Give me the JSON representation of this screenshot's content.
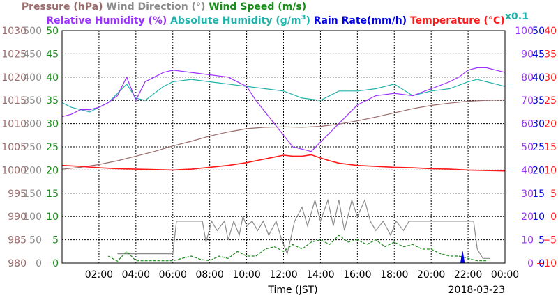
{
  "legend": {
    "row1": [
      {
        "text": "Pressure (hPa)",
        "color": "#9a6b6b"
      },
      {
        "text": "Wind Direction (°)",
        "color": "#8c8c8c"
      },
      {
        "text": "Wind Speed (m/s)",
        "color": "#1a8c1a"
      }
    ],
    "row2": [
      {
        "text": "Relative Humidity (%)",
        "color": "#9b30ff"
      },
      {
        "text": "Absolute Humidity (g/m",
        "sup": "3",
        "close": ")",
        "color": "#20b2aa"
      },
      {
        "text": "Rain Rate(mm/h)",
        "color": "#0000e0"
      },
      {
        "text": "Temperature (°C)",
        "color": "#ff1a1a"
      }
    ],
    "scale_note": {
      "text": "x0.1",
      "color": "#20b2aa"
    }
  },
  "colors": {
    "pressure": "#9a6b6b",
    "wind_direction": "#8c8c8c",
    "wind_speed": "#1a8c1a",
    "relative_humidity": "#9b30ff",
    "absolute_humidity": "#20b2aa",
    "rain_rate": "#0000e0",
    "temperature": "#ff1a1a",
    "grid": "#000000"
  },
  "chart_data": {
    "type": "line",
    "xlabel": "Time (JST)",
    "date": "2018-03-23",
    "x_ticks": [
      "02:00",
      "04:00",
      "06:00",
      "08:00",
      "10:00",
      "12:00",
      "14:00",
      "16:00",
      "18:00",
      "20:00",
      "22:00",
      "00:00"
    ],
    "xlim": [
      0,
      24
    ],
    "grid": true,
    "axes": {
      "pressure": {
        "ticks": [
          "1030",
          "1025",
          "1020",
          "1015",
          "1010",
          "1005",
          "1000",
          "995",
          "990",
          "985",
          "980"
        ],
        "ylim": [
          980,
          1030
        ]
      },
      "wind_direction": {
        "ticks": [
          "500",
          "450",
          "400",
          "350",
          "300",
          "250",
          "200",
          "150",
          "100",
          "50",
          "0"
        ],
        "ylim": [
          0,
          500
        ]
      },
      "wind_speed": {
        "ticks": [
          "50",
          "45",
          "40",
          "35",
          "30",
          "25",
          "20",
          "15",
          "10",
          "5",
          "0"
        ],
        "ylim": [
          0,
          50
        ]
      },
      "relative_humidity": {
        "ticks": [
          "100",
          "90",
          "80",
          "70",
          "60",
          "50",
          "40",
          "30",
          "20",
          "10",
          "0"
        ],
        "ylim": [
          0,
          100
        ]
      },
      "rain_rate": {
        "ticks": [
          "50",
          "45",
          "40",
          "35",
          "30",
          "25",
          "20",
          "15",
          "10",
          "5",
          "0"
        ],
        "ylim": [
          0,
          50
        ]
      },
      "temperature": {
        "ticks": [
          "40",
          "35",
          "30",
          "25",
          "20",
          "15",
          "10",
          "5",
          "0",
          "−5",
          "−10"
        ],
        "ylim": [
          -10,
          40
        ]
      }
    },
    "series": [
      {
        "name": "Pressure (hPa)",
        "key": "pressure",
        "axis": "pressure",
        "x": [
          0,
          1,
          2,
          3,
          4,
          5,
          6,
          7,
          8,
          9,
          10,
          11,
          12,
          13,
          14,
          15,
          16,
          17,
          18,
          19,
          20,
          21,
          22,
          23,
          24
        ],
        "y": [
          1000.2,
          1000.6,
          1001.2,
          1002.0,
          1003.0,
          1004.0,
          1005.2,
          1006.2,
          1007.3,
          1008.2,
          1008.9,
          1009.2,
          1009.3,
          1009.2,
          1009.4,
          1009.9,
          1010.6,
          1011.4,
          1012.3,
          1013.2,
          1013.9,
          1014.4,
          1014.8,
          1015.0,
          1015.1
        ]
      },
      {
        "name": "Wind Direction (°)",
        "key": "wind_direction",
        "axis": "wind_direction",
        "x": [
          3.0,
          3.2,
          6.0,
          6.2,
          6.6,
          7.6,
          7.8,
          8.1,
          8.4,
          8.8,
          9.0,
          9.3,
          9.6,
          9.8,
          10.0,
          10.3,
          10.6,
          10.9,
          11.2,
          11.6,
          11.9,
          12.2,
          12.6,
          13.0,
          13.3,
          13.7,
          14.0,
          14.4,
          14.7,
          15.0,
          15.3,
          15.7,
          16.0,
          16.4,
          16.7,
          17.0,
          17.4,
          17.8,
          18.1,
          18.5,
          18.8,
          19.2,
          19.6,
          20.0,
          20.5,
          21.0,
          21.5,
          22.0,
          22.3,
          22.5,
          22.8,
          23.2
        ],
        "y": [
          20,
          20,
          20,
          90,
          90,
          90,
          45,
          90,
          70,
          90,
          50,
          90,
          60,
          100,
          80,
          90,
          70,
          90,
          60,
          90,
          50,
          20,
          90,
          120,
          80,
          135,
          90,
          135,
          80,
          135,
          70,
          135,
          100,
          135,
          90,
          70,
          90,
          60,
          90,
          70,
          90,
          90,
          90,
          90,
          90,
          90,
          90,
          90,
          90,
          30,
          10,
          10
        ]
      },
      {
        "name": "Wind Speed (m/s)",
        "key": "wind_speed",
        "axis": "wind_speed",
        "x": [
          2.5,
          3.0,
          3.5,
          4.0,
          6.0,
          6.5,
          7.0,
          7.5,
          8.0,
          8.5,
          9.0,
          9.5,
          10.0,
          10.5,
          11.0,
          11.5,
          12.0,
          12.5,
          13.0,
          13.5,
          14.0,
          14.5,
          15.0,
          15.5,
          16.0,
          16.5,
          17.0,
          17.5,
          18.0,
          18.5,
          19.0,
          19.5,
          20.0,
          20.5,
          21.0,
          21.5,
          22.0,
          22.5,
          23.0
        ],
        "y": [
          1.5,
          0.4,
          2.5,
          0.5,
          0.5,
          1.0,
          1.5,
          0.8,
          0.5,
          1.5,
          1.0,
          2.5,
          1.5,
          1.5,
          3.0,
          3.5,
          2.5,
          4.0,
          3.0,
          4.5,
          5.0,
          4.0,
          6.0,
          4.5,
          5.0,
          4.0,
          5.0,
          3.5,
          4.5,
          3.5,
          4.0,
          3.0,
          3.0,
          2.0,
          1.5,
          1.5,
          1.0,
          0.5,
          0.5
        ]
      },
      {
        "name": "Relative Humidity (%)",
        "key": "relative_humidity",
        "axis": "relative_humidity",
        "x": [
          0,
          0.5,
          1.0,
          1.5,
          2.0,
          2.5,
          3.0,
          3.5,
          4.0,
          4.5,
          5.0,
          5.5,
          6.0,
          7.0,
          8.0,
          9.0,
          10.0,
          10.5,
          11.0,
          11.5,
          12.0,
          12.5,
          13.0,
          13.5,
          14.0,
          14.5,
          15.0,
          15.5,
          16.0,
          17.0,
          18.0,
          19.0,
          20.0,
          21.0,
          21.5,
          22.0,
          22.5,
          23.0,
          23.5,
          24.0
        ],
        "y": [
          63,
          64,
          66,
          66,
          67,
          69,
          72,
          80,
          70,
          78,
          80,
          82,
          83,
          82,
          81,
          80,
          76,
          70,
          65,
          60,
          55,
          50,
          49,
          48,
          52,
          56,
          60,
          64,
          68,
          72,
          73,
          72,
          75,
          78,
          80,
          83,
          84,
          84,
          83,
          82
        ]
      },
      {
        "name": "Absolute Humidity (g/m3)",
        "key": "absolute_humidity",
        "axis": "relative_humidity",
        "x": [
          0,
          0.5,
          1.0,
          1.5,
          2.0,
          2.5,
          3.0,
          3.5,
          4.0,
          4.5,
          5.0,
          5.5,
          6.0,
          7.0,
          8.0,
          9.0,
          10.0,
          11.0,
          12.0,
          13.0,
          14.0,
          15.0,
          16.0,
          17.0,
          18.0,
          19.0,
          20.0,
          21.0,
          22.0,
          22.5,
          23.0,
          23.5,
          24.0
        ],
        "y": [
          69,
          67,
          66,
          65,
          67,
          69,
          73,
          77,
          71,
          70,
          73,
          76,
          78,
          79,
          78,
          77,
          76,
          75,
          74,
          71,
          70,
          74,
          74,
          75,
          77,
          72,
          74,
          75,
          78,
          79,
          78,
          77,
          76
        ]
      },
      {
        "name": "Rain Rate(mm/h)",
        "key": "rain_rate",
        "axis": "rain_rate",
        "x": [
          21.6,
          21.7,
          21.8
        ],
        "y": [
          0,
          2.5,
          0
        ]
      },
      {
        "name": "Temperature (°C)",
        "key": "temperature",
        "axis": "temperature",
        "x": [
          0,
          1,
          2,
          3,
          4,
          5,
          6,
          7,
          8,
          9,
          10,
          11,
          11.5,
          12,
          12.5,
          13,
          13.5,
          14,
          14.5,
          15,
          16,
          17,
          18,
          19,
          20,
          21,
          22,
          23,
          24
        ],
        "y": [
          11.0,
          10.8,
          10.5,
          10.3,
          10.2,
          10.1,
          10.0,
          10.2,
          10.6,
          11.0,
          11.6,
          12.4,
          12.8,
          13.2,
          13.0,
          13.0,
          13.3,
          12.6,
          12.0,
          11.5,
          11.0,
          10.8,
          10.6,
          10.5,
          10.3,
          10.2,
          10.0,
          9.9,
          9.8
        ]
      }
    ]
  }
}
